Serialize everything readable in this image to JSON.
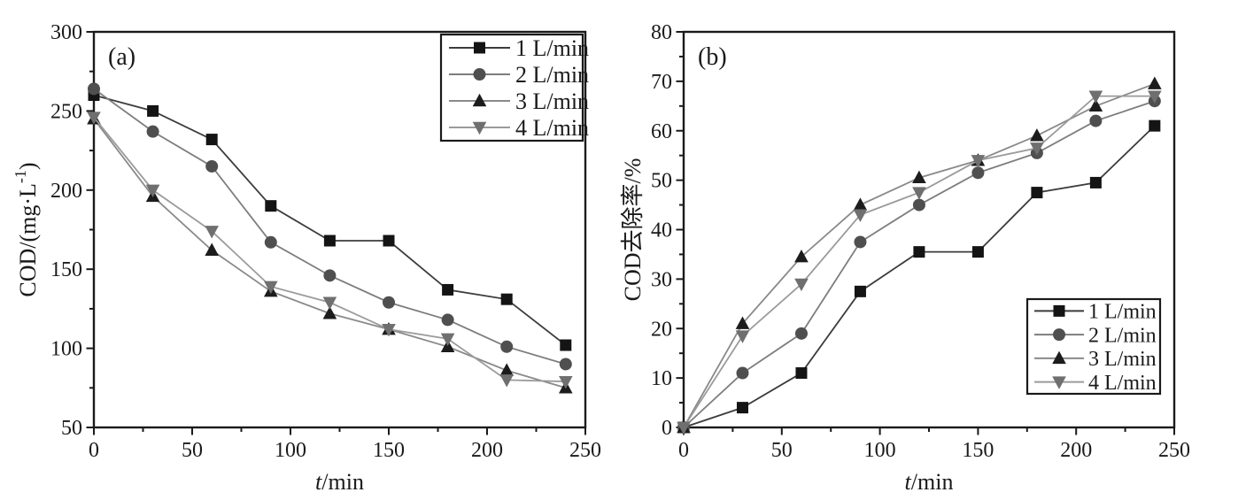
{
  "figure": {
    "background": "#ffffff",
    "frame_color": "#1a1a1a",
    "text_color": "#1a1a1a"
  },
  "chart_data": [
    {
      "type": "line",
      "panel_label": "(a)",
      "xlabel": {
        "italic": "t",
        "rest": "/min"
      },
      "ylabel": {
        "pre": "COD/(mg·L",
        "sup": "-1",
        "post": ")"
      },
      "x": [
        0,
        30,
        60,
        90,
        120,
        150,
        180,
        210,
        240
      ],
      "xlim": [
        0,
        250
      ],
      "ylim": [
        50,
        300
      ],
      "xticks": [
        0,
        50,
        100,
        150,
        200,
        250
      ],
      "yticks": [
        50,
        100,
        150,
        200,
        250,
        300
      ],
      "x_minor_step": 25,
      "y_minor_step": 25,
      "grid": "off",
      "legend_position": "top-right",
      "series": [
        {
          "name": "1 L/min",
          "marker": "square",
          "marker_color": "#141414",
          "line_color": "#3c3c3c",
          "values": [
            260,
            250,
            232,
            190,
            168,
            168,
            137,
            131,
            102
          ]
        },
        {
          "name": "2 L/min",
          "marker": "circle",
          "marker_color": "#4f4f4f",
          "line_color": "#7d7d7d",
          "values": [
            264,
            237,
            215,
            167,
            146,
            129,
            118,
            101,
            90
          ]
        },
        {
          "name": "3 L/min",
          "marker": "triangle-up",
          "marker_color": "#1c1c1c",
          "line_color": "#8a8a8a",
          "values": [
            245,
            196,
            162,
            136,
            122,
            112,
            101,
            86,
            75
          ]
        },
        {
          "name": "4 L/min",
          "marker": "triangle-down",
          "marker_color": "#6f6f6f",
          "line_color": "#9b9b9b",
          "values": [
            246,
            200,
            174,
            139,
            129,
            112,
            106,
            80,
            79
          ]
        }
      ]
    },
    {
      "type": "line",
      "panel_label": "(b)",
      "xlabel": {
        "italic": "t",
        "rest": "/min"
      },
      "ylabel": {
        "pre": "COD去除率/%",
        "sup": "",
        "post": ""
      },
      "x": [
        0,
        30,
        60,
        90,
        120,
        150,
        180,
        210,
        240
      ],
      "xlim": [
        0,
        250
      ],
      "ylim": [
        0,
        80
      ],
      "xticks": [
        0,
        50,
        100,
        150,
        200,
        250
      ],
      "yticks": [
        0,
        10,
        20,
        30,
        40,
        50,
        60,
        70,
        80
      ],
      "x_minor_step": 25,
      "y_minor_step": 5,
      "grid": "off",
      "legend_position": "bottom-right",
      "series": [
        {
          "name": "1 L/min",
          "marker": "square",
          "marker_color": "#141414",
          "line_color": "#3c3c3c",
          "values": [
            0,
            4,
            11,
            27.5,
            35.5,
            35.5,
            47.5,
            49.5,
            61
          ]
        },
        {
          "name": "2 L/min",
          "marker": "circle",
          "marker_color": "#4f4f4f",
          "line_color": "#7d7d7d",
          "values": [
            0,
            11,
            19,
            37.5,
            45,
            51.5,
            55.5,
            62,
            66
          ]
        },
        {
          "name": "3 L/min",
          "marker": "triangle-up",
          "marker_color": "#1c1c1c",
          "line_color": "#8a8a8a",
          "values": [
            0,
            21,
            34.5,
            45,
            50.5,
            54,
            59,
            65,
            69.5
          ]
        },
        {
          "name": "4 L/min",
          "marker": "triangle-down",
          "marker_color": "#6f6f6f",
          "line_color": "#9b9b9b",
          "values": [
            0,
            18.5,
            29,
            43,
            47.5,
            54,
            56.5,
            67,
            67
          ]
        }
      ]
    }
  ]
}
